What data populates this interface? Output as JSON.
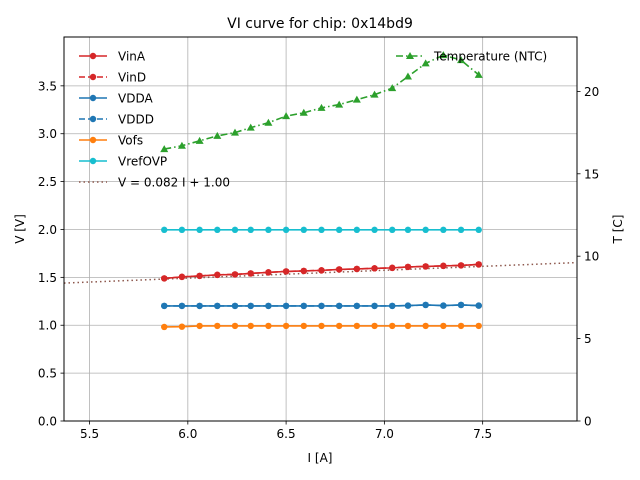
{
  "chart_data": {
    "type": "line",
    "title": "VI curve for chip: 0x14bd9",
    "xlabel": "I [A]",
    "ylabel": "V [V]",
    "y2label": "T [C]",
    "xlim": [
      5.37,
      7.98
    ],
    "ylim": [
      0,
      4.01
    ],
    "y2lim": [
      0,
      23.3
    ],
    "xticks": [
      "5.5",
      "6.0",
      "6.5",
      "7.0",
      "7.5"
    ],
    "xtick_values": [
      5.5,
      6.0,
      6.5,
      7.0,
      7.5
    ],
    "yticks": [
      "0.0",
      "0.5",
      "1.0",
      "1.5",
      "2.0",
      "2.5",
      "3.0",
      "3.5"
    ],
    "ytick_values": [
      0.0,
      0.5,
      1.0,
      1.5,
      2.0,
      2.5,
      3.0,
      3.5
    ],
    "y2ticks": [
      "0",
      "5",
      "10",
      "15",
      "20"
    ],
    "y2tick_values": [
      0,
      5,
      10,
      15,
      20
    ],
    "grid": true,
    "legend_placement": "upper-left",
    "legend2_placement": "upper-right",
    "x": [
      5.88,
      5.97,
      6.06,
      6.15,
      6.24,
      6.32,
      6.41,
      6.5,
      6.59,
      6.68,
      6.77,
      6.86,
      6.95,
      7.04,
      7.12,
      7.21,
      7.3,
      7.39,
      7.48
    ],
    "series": [
      {
        "name": "VinA",
        "axis": "left",
        "color": "#d62728",
        "linestyle": "solid",
        "marker": "circle",
        "values": [
          1.489,
          1.505,
          1.515,
          1.526,
          1.531,
          1.541,
          1.552,
          1.562,
          1.567,
          1.573,
          1.583,
          1.588,
          1.594,
          1.599,
          1.609,
          1.614,
          1.62,
          1.625,
          1.635
        ]
      },
      {
        "name": "VinD",
        "axis": "left",
        "color": "#d62728",
        "linestyle": "dashed",
        "marker": "circle",
        "values": [
          1.489,
          1.505,
          1.515,
          1.526,
          1.531,
          1.541,
          1.552,
          1.562,
          1.567,
          1.573,
          1.583,
          1.588,
          1.594,
          1.599,
          1.609,
          1.614,
          1.62,
          1.625,
          1.635
        ]
      },
      {
        "name": "VDDA",
        "axis": "left",
        "color": "#1f77b4",
        "linestyle": "solid",
        "marker": "circle",
        "values": [
          1.202,
          1.202,
          1.202,
          1.202,
          1.202,
          1.202,
          1.202,
          1.202,
          1.202,
          1.202,
          1.202,
          1.202,
          1.202,
          1.202,
          1.205,
          1.212,
          1.205,
          1.212,
          1.205
        ]
      },
      {
        "name": "VDDD",
        "axis": "left",
        "color": "#1f77b4",
        "linestyle": "dashed",
        "marker": "circle",
        "values": [
          1.202,
          1.202,
          1.202,
          1.202,
          1.202,
          1.202,
          1.202,
          1.202,
          1.202,
          1.202,
          1.202,
          1.202,
          1.202,
          1.202,
          1.205,
          1.212,
          1.205,
          1.212,
          1.205
        ]
      },
      {
        "name": "Vofs",
        "axis": "left",
        "color": "#ff7f0e",
        "linestyle": "solid",
        "marker": "circle",
        "values": [
          0.982,
          0.985,
          0.993,
          0.993,
          0.993,
          0.993,
          0.993,
          0.993,
          0.993,
          0.993,
          0.993,
          0.993,
          0.993,
          0.993,
          0.993,
          0.993,
          0.993,
          0.993,
          0.993
        ]
      },
      {
        "name": "VrefOVP",
        "axis": "left",
        "color": "#17becf",
        "linestyle": "solid",
        "marker": "circle",
        "values": [
          1.996,
          1.996,
          1.996,
          1.996,
          1.996,
          1.996,
          1.996,
          1.996,
          1.996,
          1.996,
          1.996,
          1.996,
          1.996,
          1.996,
          1.996,
          1.996,
          1.996,
          1.996,
          1.996
        ]
      },
      {
        "name": "Temperature (NTC)",
        "axis": "right",
        "color": "#2ca02c",
        "linestyle": "dashdot",
        "marker": "triangle",
        "values": [
          16.5,
          16.7,
          17.0,
          17.3,
          17.5,
          17.8,
          18.1,
          18.5,
          18.7,
          19.0,
          19.2,
          19.5,
          19.8,
          20.2,
          20.9,
          21.7,
          22.2,
          21.9,
          21.0
        ]
      }
    ],
    "fit": {
      "label": "V = 0.082 I + 1.00",
      "slope": 0.082,
      "intercept": 1.0,
      "color": "#8c564b",
      "linestyle": "dotted"
    }
  }
}
